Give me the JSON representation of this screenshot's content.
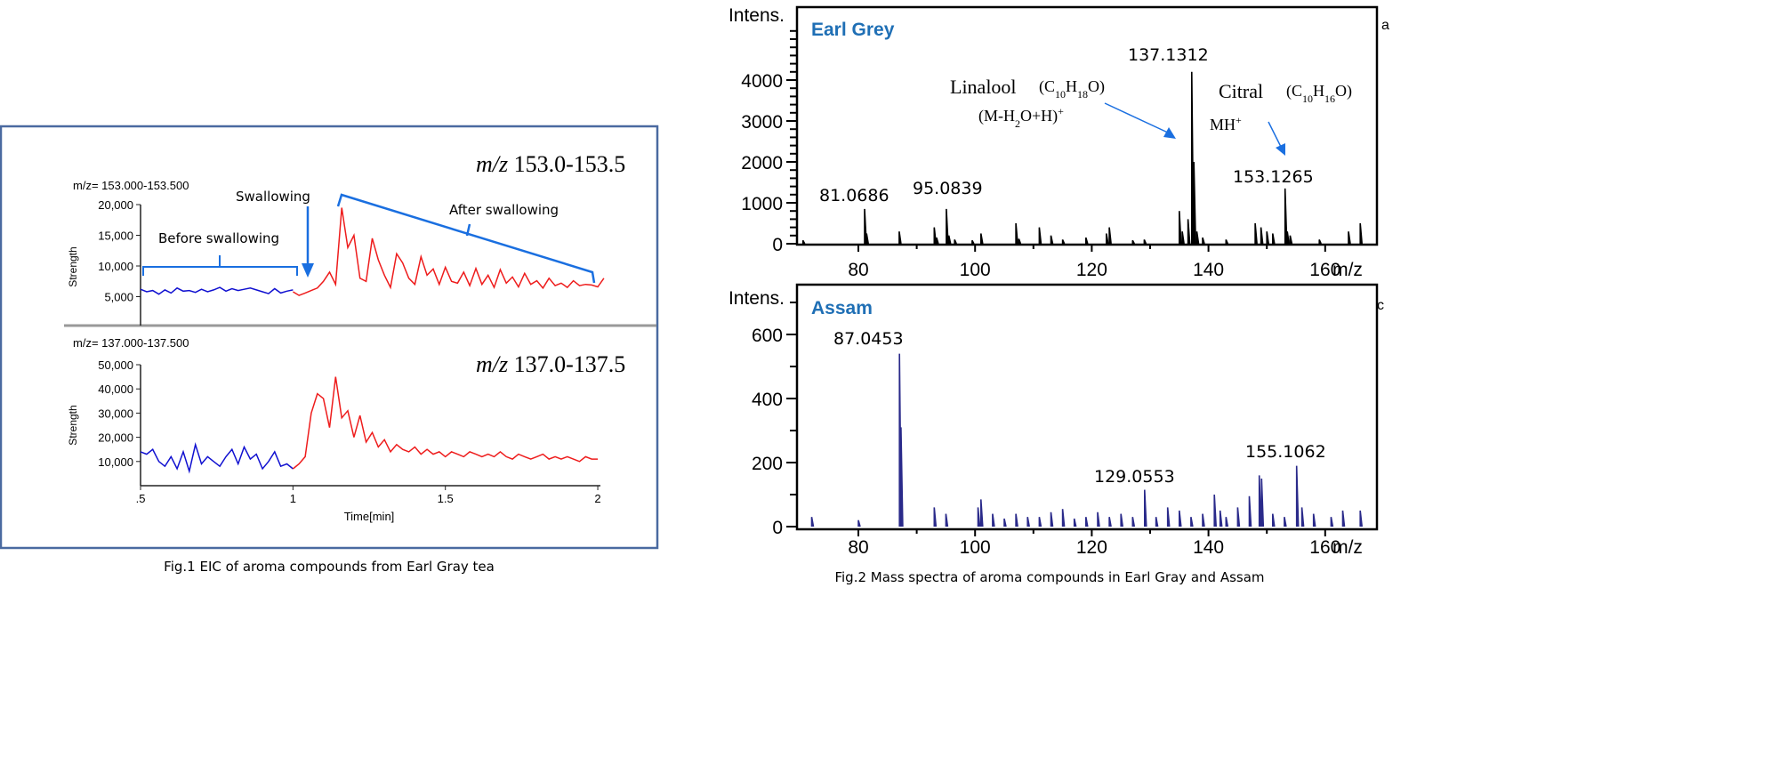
{
  "colors": {
    "before": "#1010d0",
    "after": "#ee1c1c",
    "annot": "#1a6fe0",
    "frame": "#4a6aa0",
    "label": "#1f6fb5",
    "assam": "#2a2a8a",
    "earl": "#000000"
  },
  "chart_data": [
    {
      "type": "line",
      "title": "Fig.1 EIC of aroma compounds from Earl Gray tea",
      "xlabel": "Time[min]",
      "xlim": [
        0.5,
        2
      ],
      "xticks": [
        ".5",
        "1",
        "1.5",
        "2"
      ],
      "panels": [
        {
          "range_label": "m/z= 153.000-153.500",
          "mz_label_italic": "m/z",
          "mz_label": "153.0-153.5",
          "ylabel": "Strength",
          "yticks": [
            "20,000",
            "15,000",
            "10,000",
            "5,000"
          ],
          "ytick_values": [
            20000,
            15000,
            10000,
            5000
          ],
          "step": 0.02,
          "unit": 1000,
          "series": [
            {
              "name": "before swallowing",
              "x0": 0.5,
              "values": [
                6.2,
                5.8,
                6.0,
                5.4,
                6.1,
                5.6,
                6.4,
                5.9,
                6.0,
                5.7,
                6.2,
                5.8,
                6.1,
                6.5,
                5.9,
                6.3,
                6.0,
                6.2,
                6.4,
                6.1,
                5.8,
                5.5,
                6.3,
                5.6,
                5.9,
                6.1
              ]
            },
            {
              "name": "after swallowing",
              "x0": 1.0,
              "values": [
                5.8,
                5.2,
                5.6,
                6.0,
                6.4,
                7.5,
                9.0,
                7.0,
                19.5,
                13.0,
                15.0,
                8.0,
                7.5,
                14.5,
                11.0,
                8.5,
                6.5,
                12.0,
                10.5,
                8.0,
                7.0,
                11.5,
                8.5,
                9.5,
                7.0,
                9.8,
                7.5,
                7.2,
                9.0,
                6.8,
                9.6,
                7.0,
                8.5,
                6.5,
                9.4,
                7.2,
                8.2,
                6.6,
                8.8,
                7.0,
                7.6,
                6.4,
                8.0,
                6.8,
                7.2,
                6.5,
                7.6,
                6.8,
                7.0,
                6.9,
                6.6,
                8.0
              ]
            }
          ],
          "annotations": {
            "before": "Before swallowing",
            "swallowing": "Swallowing",
            "after": "After swallowing"
          }
        },
        {
          "range_label": "m/z= 137.000-137.500",
          "mz_label_italic": "m/z",
          "mz_label": "137.0-137.5",
          "ylabel": "Strength",
          "yticks": [
            "50,000",
            "40,000",
            "30,000",
            "20,000",
            "10,000"
          ],
          "ytick_values": [
            50000,
            40000,
            30000,
            20000,
            10000
          ],
          "step": 0.02,
          "unit": 1000,
          "series": [
            {
              "name": "before swallowing",
              "x0": 0.5,
              "values": [
                14,
                13,
                15,
                10,
                8,
                12,
                7,
                14,
                6,
                17,
                9,
                12,
                10,
                8,
                12,
                15,
                9,
                16,
                11,
                13,
                7,
                10,
                14,
                8,
                9,
                7
              ]
            },
            {
              "name": "after swallowing",
              "x0": 1.0,
              "values": [
                7,
                9,
                12,
                30,
                38,
                36,
                24,
                45,
                28,
                31,
                20,
                29,
                18,
                22,
                16,
                19,
                14,
                17,
                15,
                14,
                16,
                13,
                15,
                13,
                14,
                12,
                14,
                13,
                12,
                14,
                13,
                12,
                13,
                12,
                14,
                12,
                11,
                13,
                12,
                11,
                12,
                13,
                11,
                12,
                11,
                12,
                11,
                10,
                12,
                11,
                11
              ]
            }
          ]
        }
      ]
    },
    {
      "type": "bar",
      "title": "Fig.2 Mass spectra of aroma compounds in Earl Gray and Assam",
      "xlabel": "m/z",
      "ylabel": "Intens.",
      "xlim": [
        70,
        166
      ],
      "xticks": [
        80,
        100,
        120,
        140,
        160
      ],
      "panels": [
        {
          "name": "Earl Grey",
          "ylim": [
            0,
            4600
          ],
          "yticks": [
            0,
            1000,
            2000,
            3000,
            4000
          ],
          "peaks": [
            [
              70.5,
              80
            ],
            [
              81.07,
              850
            ],
            [
              81.4,
              250
            ],
            [
              87,
              300
            ],
            [
              93,
              400
            ],
            [
              93.4,
              150
            ],
            [
              95.08,
              850
            ],
            [
              95.5,
              200
            ],
            [
              96.5,
              100
            ],
            [
              99.5,
              80
            ],
            [
              101,
              250
            ],
            [
              107,
              500
            ],
            [
              107.5,
              120
            ],
            [
              111,
              400
            ],
            [
              113,
              200
            ],
            [
              115,
              100
            ],
            [
              119,
              150
            ],
            [
              122.5,
              250
            ],
            [
              123,
              400
            ],
            [
              127,
              80
            ],
            [
              129,
              100
            ],
            [
              135,
              800
            ],
            [
              135.5,
              300
            ],
            [
              136.5,
              600
            ],
            [
              137.13,
              4200
            ],
            [
              137.5,
              2000
            ],
            [
              138,
              300
            ],
            [
              139,
              150
            ],
            [
              143,
              100
            ],
            [
              148,
              500
            ],
            [
              149,
              400
            ],
            [
              150,
              300
            ],
            [
              151,
              250
            ],
            [
              153.13,
              1350
            ],
            [
              153.5,
              300
            ],
            [
              154,
              200
            ],
            [
              159,
              100
            ],
            [
              164,
              300
            ],
            [
              166,
              500
            ]
          ],
          "labels": {
            "p137": "137.1312",
            "linalool": "Linalool",
            "linalool_formula": "(C10H18O)",
            "linalool_ion": "(M-H2O+H)+",
            "citral": "Citral",
            "citral_formula": "(C10H16O)",
            "citral_ion": "MH+",
            "p153": "153.1265",
            "p81": "81.0686",
            "p95": "95.0839"
          }
        },
        {
          "name": "Assam",
          "ylim": [
            0,
            700
          ],
          "yticks": [
            0,
            200,
            400,
            600
          ],
          "peaks": [
            [
              72,
              30
            ],
            [
              80,
              20
            ],
            [
              87.05,
              540
            ],
            [
              87.3,
              310
            ],
            [
              93,
              60
            ],
            [
              95,
              40
            ],
            [
              100.5,
              60
            ],
            [
              101,
              85
            ],
            [
              103,
              40
            ],
            [
              105,
              25
            ],
            [
              107,
              40
            ],
            [
              109,
              30
            ],
            [
              111,
              30
            ],
            [
              113,
              45
            ],
            [
              115,
              55
            ],
            [
              117,
              25
            ],
            [
              119,
              30
            ],
            [
              121,
              45
            ],
            [
              123,
              30
            ],
            [
              125,
              40
            ],
            [
              127,
              30
            ],
            [
              129.06,
              115
            ],
            [
              131,
              30
            ],
            [
              133,
              60
            ],
            [
              135,
              50
            ],
            [
              137,
              30
            ],
            [
              139,
              40
            ],
            [
              141,
              100
            ],
            [
              142,
              50
            ],
            [
              143,
              30
            ],
            [
              145,
              60
            ],
            [
              147,
              95
            ],
            [
              148.7,
              160
            ],
            [
              149.1,
              150
            ],
            [
              151,
              40
            ],
            [
              153,
              30
            ],
            [
              155.1,
              190
            ],
            [
              156,
              60
            ],
            [
              158,
              40
            ],
            [
              161,
              30
            ],
            [
              163,
              50
            ],
            [
              166,
              50
            ]
          ],
          "labels": {
            "p87": "87.0453",
            "p129": "129.0553",
            "p155": "155.1062"
          }
        }
      ],
      "edge_glyphs": [
        "a",
        "c"
      ]
    }
  ]
}
